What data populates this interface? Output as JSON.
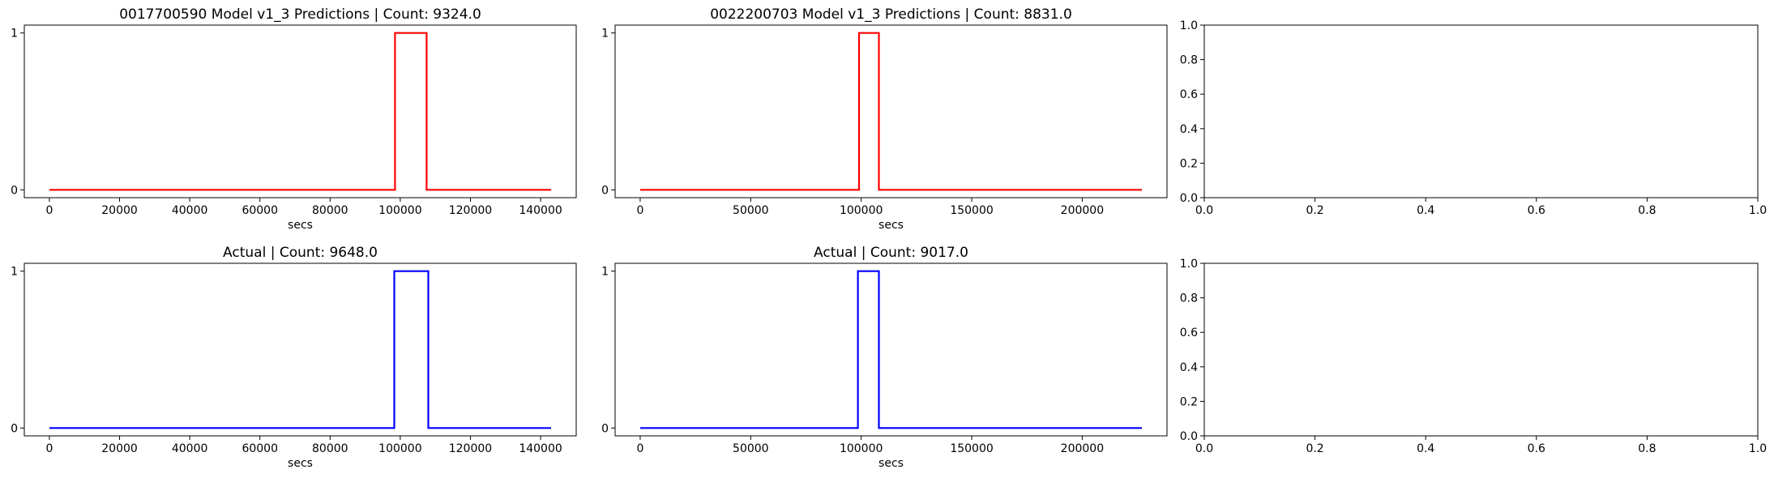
{
  "chart_data": [
    {
      "type": "line",
      "title": "0017700590 Model v1_3 Predictions | Count: 9324.0",
      "xlabel": "secs",
      "ylabel": "",
      "xlim": [
        -7150,
        150150
      ],
      "ylim": [
        -0.05,
        1.05
      ],
      "xticks": [
        0,
        20000,
        40000,
        60000,
        80000,
        100000,
        120000,
        140000
      ],
      "xtick_labels": [
        "0",
        "20000",
        "40000",
        "60000",
        "80000",
        "100000",
        "120000",
        "140000"
      ],
      "yticks": [
        0,
        1
      ],
      "ytick_labels": [
        "0",
        "1"
      ],
      "color": "#ff0000",
      "series": [
        {
          "x": [
            0,
            98500,
            98500,
            107500,
            107500,
            143000
          ],
          "y": [
            0,
            0,
            1,
            1,
            0,
            0
          ]
        }
      ]
    },
    {
      "type": "line",
      "title": "0022200703 Model v1_3 Predictions | Count: 8831.0",
      "xlabel": "secs",
      "ylabel": "",
      "xlim": [
        -11350,
        238350
      ],
      "ylim": [
        -0.05,
        1.05
      ],
      "xticks": [
        0,
        50000,
        100000,
        150000,
        200000
      ],
      "xtick_labels": [
        "0",
        "50000",
        "100000",
        "150000",
        "200000"
      ],
      "yticks": [
        0,
        1
      ],
      "ytick_labels": [
        "0",
        "1"
      ],
      "color": "#ff0000",
      "series": [
        {
          "x": [
            0,
            99000,
            99000,
            108000,
            108000,
            227000
          ],
          "y": [
            0,
            0,
            1,
            1,
            0,
            0
          ]
        }
      ]
    },
    {
      "type": "line",
      "title": "",
      "xlabel": "",
      "ylabel": "",
      "xlim": [
        0,
        1
      ],
      "ylim": [
        0,
        1
      ],
      "xticks": [
        0.0,
        0.2,
        0.4,
        0.6,
        0.8,
        1.0
      ],
      "xtick_labels": [
        "0.0",
        "0.2",
        "0.4",
        "0.6",
        "0.8",
        "1.0"
      ],
      "yticks": [
        0.0,
        0.2,
        0.4,
        0.6,
        0.8,
        1.0
      ],
      "ytick_labels": [
        "0.0",
        "0.2",
        "0.4",
        "0.6",
        "0.8",
        "1.0"
      ],
      "color": "#000000",
      "series": []
    },
    {
      "type": "line",
      "title": "Actual | Count: 9648.0",
      "xlabel": "secs",
      "ylabel": "",
      "xlim": [
        -7150,
        150150
      ],
      "ylim": [
        -0.05,
        1.05
      ],
      "xticks": [
        0,
        20000,
        40000,
        60000,
        80000,
        100000,
        120000,
        140000
      ],
      "xtick_labels": [
        "0",
        "20000",
        "40000",
        "60000",
        "80000",
        "100000",
        "120000",
        "140000"
      ],
      "yticks": [
        0,
        1
      ],
      "ytick_labels": [
        "0",
        "1"
      ],
      "color": "#0000ff",
      "series": [
        {
          "x": [
            0,
            98300,
            98300,
            108000,
            108000,
            143000
          ],
          "y": [
            0,
            0,
            1,
            1,
            0,
            0
          ]
        }
      ]
    },
    {
      "type": "line",
      "title": "Actual | Count: 9017.0",
      "xlabel": "secs",
      "ylabel": "",
      "xlim": [
        -11350,
        238350
      ],
      "ylim": [
        -0.05,
        1.05
      ],
      "xticks": [
        0,
        50000,
        100000,
        150000,
        200000
      ],
      "xtick_labels": [
        "0",
        "50000",
        "100000",
        "150000",
        "200000"
      ],
      "yticks": [
        0,
        1
      ],
      "ytick_labels": [
        "0",
        "1"
      ],
      "color": "#0000ff",
      "series": [
        {
          "x": [
            0,
            98500,
            98500,
            108000,
            108000,
            227000
          ],
          "y": [
            0,
            0,
            1,
            1,
            0,
            0
          ]
        }
      ]
    },
    {
      "type": "line",
      "title": "",
      "xlabel": "",
      "ylabel": "",
      "xlim": [
        0,
        1
      ],
      "ylim": [
        0,
        1
      ],
      "xticks": [
        0.0,
        0.2,
        0.4,
        0.6,
        0.8,
        1.0
      ],
      "xtick_labels": [
        "0.0",
        "0.2",
        "0.4",
        "0.6",
        "0.8",
        "1.0"
      ],
      "yticks": [
        0.0,
        0.2,
        0.4,
        0.6,
        0.8,
        1.0
      ],
      "ytick_labels": [
        "0.0",
        "0.2",
        "0.4",
        "0.6",
        "0.8",
        "1.0"
      ],
      "color": "#000000",
      "series": []
    }
  ]
}
